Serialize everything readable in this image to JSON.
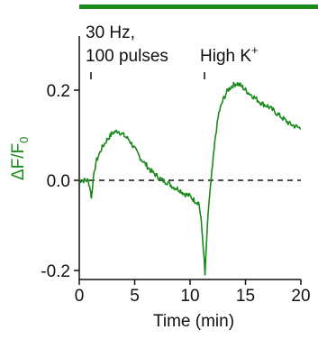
{
  "chart_data": {
    "type": "line",
    "xlabel": "Time (min)",
    "ylabel": {
      "main": "ΔF/F",
      "subscript": "0"
    },
    "xlim": [
      0,
      20
    ],
    "ylim": [
      -0.22,
      0.32
    ],
    "xticks": [
      0,
      5,
      10,
      15,
      20
    ],
    "xtick_labels": [
      "0",
      "5",
      "10",
      "15",
      "20"
    ],
    "yticks": [
      0.2,
      0.0,
      -0.2
    ],
    "ytick_labels": [
      "0.2",
      "0.0",
      "-0.2"
    ],
    "baseline": {
      "y": 0.0,
      "style": "dashed"
    },
    "top_bar_color": "#1a8a1a",
    "series": [
      {
        "color": "#1a8a1a",
        "x": [
          0.0,
          0.4,
          0.8,
          1.0,
          1.1,
          1.2,
          1.5,
          2.0,
          2.5,
          3.0,
          3.5,
          4.0,
          4.5,
          5.0,
          5.5,
          6.0,
          6.5,
          7.0,
          7.5,
          8.0,
          8.5,
          9.0,
          9.5,
          10.0,
          10.4,
          10.8,
          11.0,
          11.2,
          11.35,
          11.5,
          11.7,
          11.9,
          12.1,
          12.3,
          12.6,
          13.0,
          13.4,
          13.8,
          14.2,
          14.6,
          15.0,
          15.5,
          16.0,
          16.5,
          17.0,
          17.5,
          18.0,
          18.5,
          19.0,
          19.5,
          20.0
        ],
        "y": [
          0.0,
          0.0,
          0.0,
          -0.02,
          -0.04,
          -0.01,
          0.04,
          0.07,
          0.09,
          0.105,
          0.11,
          0.1,
          0.09,
          0.07,
          0.05,
          0.035,
          0.02,
          0.01,
          0.0,
          -0.005,
          -0.015,
          -0.02,
          -0.03,
          -0.035,
          -0.045,
          -0.05,
          -0.09,
          -0.15,
          -0.21,
          -0.13,
          -0.05,
          0.0,
          0.05,
          0.1,
          0.15,
          0.18,
          0.2,
          0.21,
          0.215,
          0.21,
          0.2,
          0.19,
          0.18,
          0.17,
          0.165,
          0.155,
          0.145,
          0.135,
          0.125,
          0.12,
          0.115
        ]
      }
    ],
    "annotations": [
      {
        "lines": [
          "30 Hz,",
          "100 pulses"
        ],
        "x": 1.0
      },
      {
        "lines": [
          "High K",
          "+"
        ],
        "x": 11.2
      }
    ]
  }
}
